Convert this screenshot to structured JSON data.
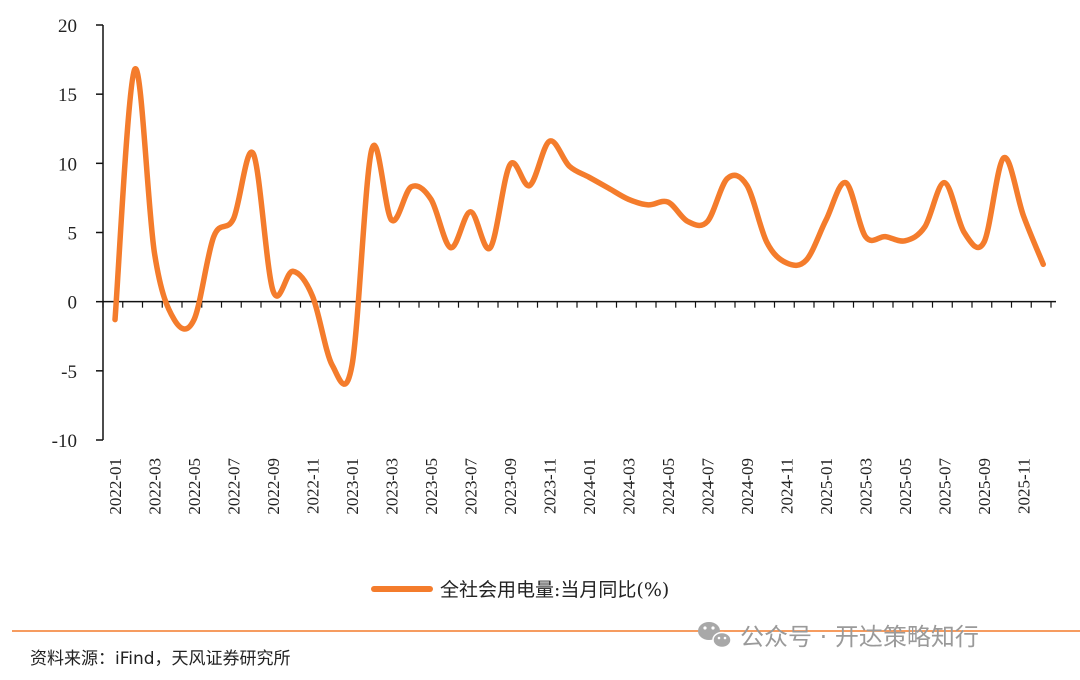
{
  "colors": {
    "series": "#f47c2c",
    "axis": "#111111",
    "footer_rule": "#f47c2c",
    "watermark": "#9a9a9a"
  },
  "chart_data": {
    "type": "line",
    "title": "",
    "xlabel": "",
    "ylabel": "",
    "ylim": [
      -10,
      20
    ],
    "yticks": [
      -10,
      -5,
      0,
      5,
      10,
      15,
      20
    ],
    "x_tick_labels": [
      "2022-01",
      "2022-03",
      "2022-05",
      "2022-07",
      "2022-09",
      "2022-11",
      "2023-01",
      "2023-03",
      "2023-05",
      "2023-07",
      "2023-09",
      "2023-11",
      "2024-01",
      "2024-03",
      "2024-05",
      "2024-07",
      "2024-09",
      "2024-11",
      "2025-01",
      "2025-03",
      "2025-05",
      "2025-07",
      "2025-09",
      "2025-11"
    ],
    "legend_position": "bottom",
    "grid": false,
    "series": [
      {
        "name": "全社会用电量:当月同比(%)",
        "x": [
          "2022-01",
          "2022-02",
          "2022-03",
          "2022-04",
          "2022-05",
          "2022-06",
          "2022-07",
          "2022-08",
          "2022-09",
          "2022-10",
          "2022-11",
          "2022-12",
          "2023-01",
          "2023-02",
          "2023-03",
          "2023-04",
          "2023-05",
          "2023-06",
          "2023-07",
          "2023-08",
          "2023-09",
          "2023-10",
          "2023-11",
          "2023-12",
          "2024-01",
          "2024-02",
          "2024-03",
          "2024-04",
          "2024-05",
          "2024-06",
          "2024-07",
          "2024-08",
          "2024-09",
          "2024-10",
          "2024-11",
          "2024-12",
          "2025-01",
          "2025-02",
          "2025-03",
          "2025-04",
          "2025-05",
          "2025-06",
          "2025-07",
          "2025-08",
          "2025-09",
          "2025-10",
          "2025-11",
          "2025-12"
        ],
        "values": [
          -1.3,
          16.8,
          3.5,
          -1.3,
          -1.3,
          4.7,
          6.0,
          10.7,
          0.8,
          2.2,
          0.4,
          -4.6,
          -4.6,
          11.0,
          5.9,
          8.3,
          7.4,
          3.9,
          6.5,
          3.9,
          9.9,
          8.4,
          11.6,
          9.8,
          9.0,
          8.2,
          7.4,
          7.0,
          7.2,
          5.8,
          5.8,
          8.9,
          8.4,
          4.3,
          2.8,
          3.0,
          5.9,
          8.6,
          4.7,
          4.7,
          4.4,
          5.4,
          8.6,
          5.0,
          4.3,
          10.4,
          6.2,
          2.7
        ]
      }
    ]
  },
  "legend": {
    "label": "全社会用电量:当月同比(%)"
  },
  "footer": {
    "source": "资料来源：iFind，天风证券研究所",
    "watermark": "公众号 · 开达策略知行"
  }
}
